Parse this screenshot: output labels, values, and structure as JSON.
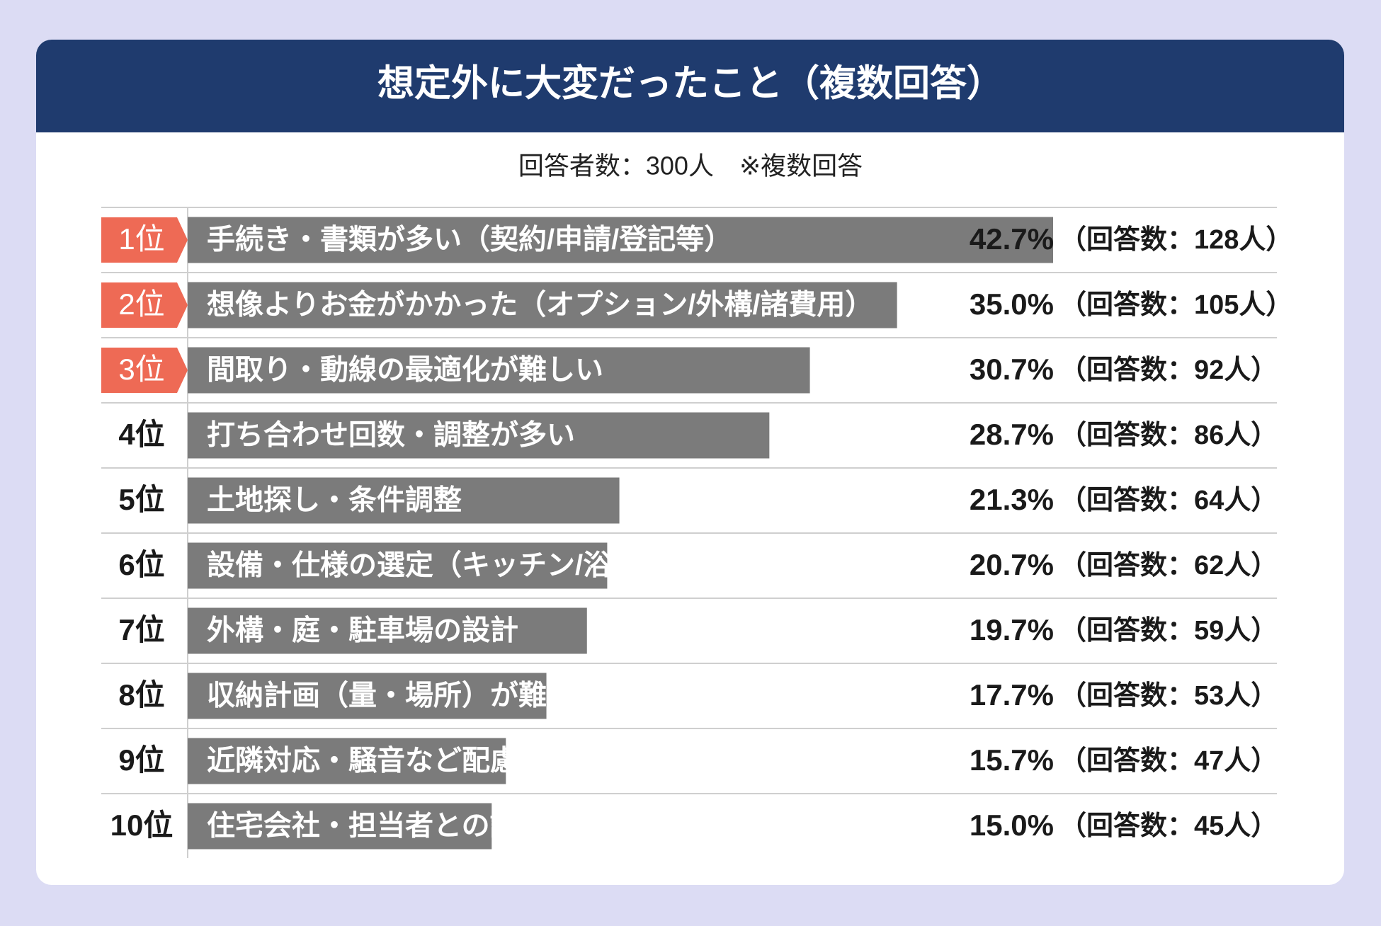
{
  "chart_data": {
    "type": "ranked-bar",
    "title": "想定外に大変だったこと（複数回答）",
    "subtitle": "回答者数：300人　※複数回答",
    "ranks": [
      "1位",
      "2位",
      "3位",
      "4位",
      "5位",
      "6位",
      "7位",
      "8位",
      "9位",
      "10位"
    ],
    "highlighted": [
      true,
      true,
      true,
      false,
      false,
      false,
      false,
      false,
      false,
      false
    ],
    "highlight_color": "#ee6a55",
    "categories": [
      "手続き・書類が多い（契約/申請/登記等）",
      "想像よりお金がかかった（オプション/外構/諸費用）",
      "間取り・動線の最適化が難しい",
      "打ち合わせ回数・調整が多い",
      "土地探し・条件調整",
      "設備・仕様の選定（キッチン/浴室など）",
      "外構・庭・駐車場の設計",
      "収納計画（量・場所）が難しい",
      "近隣対応・騒音など配慮が必要",
      "住宅会社・担当者との認識合わせが難しい"
    ],
    "values": [
      42.7,
      35.0,
      30.7,
      28.7,
      21.3,
      20.7,
      19.7,
      17.7,
      15.7,
      15.0
    ],
    "value_labels": [
      "42.7%",
      "35.0%",
      "30.7%",
      "28.7%",
      "21.3%",
      "20.7%",
      "19.7%",
      "17.7%",
      "15.7%",
      "15.0%"
    ],
    "count_labels": [
      "（回答数：128人）",
      "（回答数：105人）",
      "（回答数：92人）",
      "（回答数：86人）",
      "（回答数：64人）",
      "（回答数：62人）",
      "（回答数：59人）",
      "（回答数：53人）",
      "（回答数：47人）",
      "（回答数：45人）"
    ],
    "color": "#7b7b7b"
  }
}
